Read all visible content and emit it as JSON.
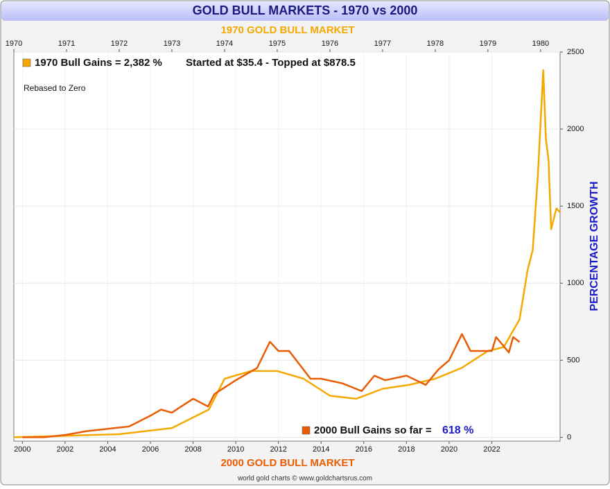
{
  "chart_data": {
    "type": "line",
    "title": "GOLD BULL MARKETS - 1970 vs 2000",
    "x2_label": "1970 GOLD BULL MARKET",
    "x_label": "2000 GOLD BULL MARKET",
    "y_label": "PERCENTAGE GROWTH",
    "note": "Rebased to Zero",
    "annotation": "Started at $35.4 - Topped at $878.5",
    "annotation2": "618 %",
    "footer": "world gold charts © www.goldchartsrus.com",
    "xlim": [
      1999.6,
      2025.2
    ],
    "xticks": [
      2000,
      2002,
      2004,
      2006,
      2008,
      2010,
      2012,
      2014,
      2016,
      2018,
      2020,
      2022
    ],
    "x2lim": [
      1970,
      1980.37
    ],
    "x2ticks": [
      1970,
      1971,
      1972,
      1973,
      1974,
      1975,
      1976,
      1977,
      1978,
      1979,
      1980
    ],
    "ylim": [
      -25,
      2500
    ],
    "yticks": [
      0,
      500,
      1000,
      1500,
      2000,
      2500
    ],
    "grid": true,
    "series": [
      {
        "name": "1970 Bull Gains = 2,382 %",
        "color": "#f5a800",
        "axis": "x2",
        "x": [
          1970,
          1971,
          1972,
          1973,
          1973.7,
          1974,
          1974.5,
          1975,
          1975.5,
          1976,
          1976.5,
          1977,
          1977.5,
          1978,
          1978.5,
          1979,
          1979.3,
          1979.6,
          1979.75,
          1979.85,
          1979.95,
          1980.05,
          1980.1,
          1980.15,
          1980.2,
          1980.3,
          1980.37
        ],
        "values": [
          0,
          10,
          20,
          60,
          180,
          380,
          430,
          430,
          380,
          270,
          250,
          315,
          340,
          380,
          450,
          560,
          585,
          765,
          1080,
          1215,
          1710,
          2382,
          1935,
          1800,
          1350,
          1485,
          1460
        ]
      },
      {
        "name": "2000 Bull Gains so far =",
        "color": "#e85d04",
        "x": [
          2000,
          2001,
          2002,
          2003,
          2004,
          2005,
          2006,
          2006.5,
          2007,
          2008,
          2008.7,
          2009,
          2010,
          2011,
          2011.6,
          2012,
          2012.5,
          2013,
          2013.5,
          2014,
          2015,
          2015.9,
          2016.5,
          2017,
          2018,
          2018.9,
          2019.5,
          2020,
          2020.6,
          2021,
          2022,
          2022.2,
          2022.8,
          2023,
          2023.3
        ],
        "values": [
          0,
          0,
          15,
          40,
          55,
          70,
          140,
          180,
          160,
          250,
          200,
          280,
          370,
          450,
          620,
          560,
          560,
          470,
          380,
          380,
          350,
          300,
          400,
          370,
          400,
          340,
          440,
          500,
          670,
          560,
          560,
          650,
          550,
          650,
          618
        ]
      }
    ]
  }
}
